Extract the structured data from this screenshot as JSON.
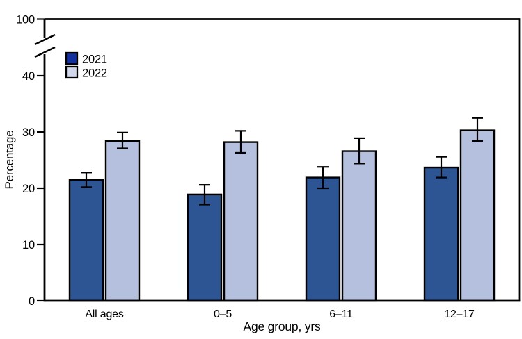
{
  "chart_data": {
    "type": "bar",
    "title": "",
    "categories": [
      "All ages",
      "0–5",
      "6–11",
      "12–17"
    ],
    "series": [
      {
        "name": "2021",
        "bar_color": "#2e5593",
        "legend_swatch_color": "#12309e",
        "values": [
          21.5,
          18.9,
          21.9,
          23.7
        ],
        "ci_low": [
          20.2,
          17.1,
          20.0,
          21.9
        ],
        "ci_high": [
          22.8,
          20.6,
          23.8,
          25.6
        ]
      },
      {
        "name": "2022",
        "bar_color": "#b5c0df",
        "legend_swatch_color": "#d3d9ec",
        "values": [
          28.4,
          28.2,
          26.6,
          30.3
        ],
        "ci_low": [
          27.1,
          26.3,
          24.4,
          28.4
        ],
        "ci_high": [
          29.9,
          30.2,
          28.9,
          32.5
        ]
      }
    ],
    "xlabel": "Age group, yrs",
    "ylabel": "Percentage",
    "y_ticks": [
      0,
      10,
      20,
      30,
      40
    ],
    "y_top_tick": 100,
    "y_axis_break": true,
    "ylim": [
      0,
      100
    ],
    "grid": false,
    "legend_position": "top-left",
    "error_bars": true,
    "outline_color": "#000000"
  }
}
